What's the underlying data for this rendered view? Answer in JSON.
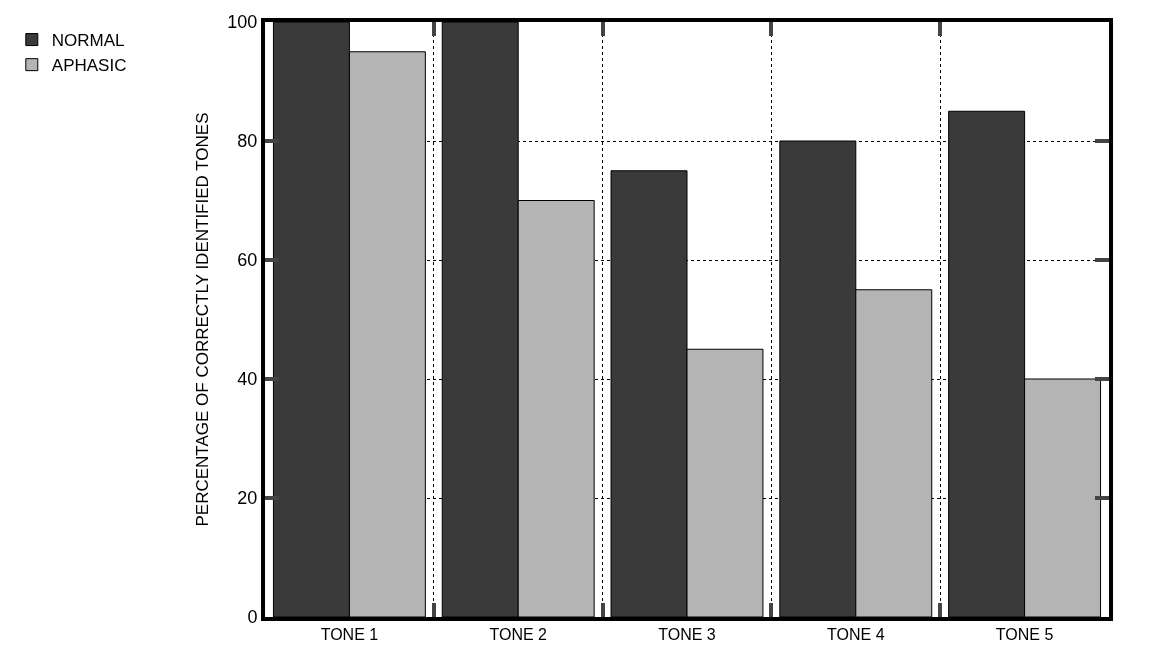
{
  "chart_data": {
    "type": "bar",
    "ylabel": "PERCENTAGE OF CORRECTLY IDENTIFIED TONES",
    "categories": [
      "TONE 1",
      "TONE 2",
      "TONE 3",
      "TONE 4",
      "TONE 5"
    ],
    "series": [
      {
        "name": "NORMAL",
        "color": "#3a3a3a",
        "values": [
          100,
          100,
          75,
          80,
          85
        ]
      },
      {
        "name": "APHASIC",
        "color": "#b4b4b4",
        "values": [
          95,
          70,
          45,
          55,
          40
        ]
      }
    ],
    "ylim": [
      0,
      100
    ],
    "yticks": [
      0,
      20,
      40,
      60,
      80,
      100
    ],
    "grid": true,
    "legend": "top left"
  }
}
